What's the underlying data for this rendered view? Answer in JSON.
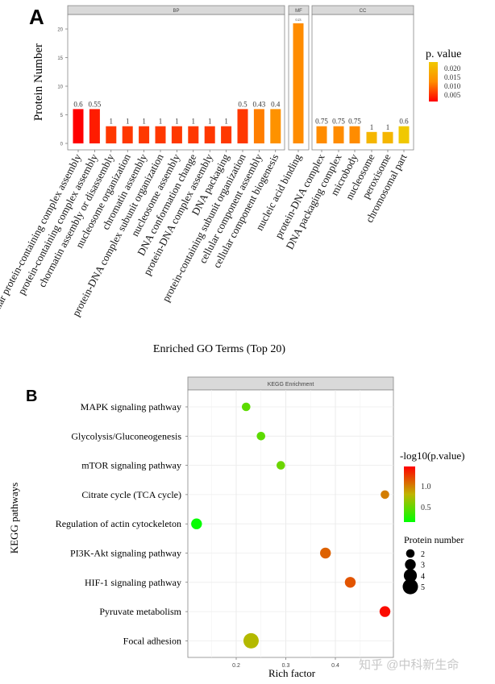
{
  "chart_data": [
    {
      "type": "bar",
      "panel_label": "A",
      "ylabel": "Protein Number",
      "xlabel": "Enriched GO Terms (Top 20)",
      "ylim": [
        0,
        23
      ],
      "yticks": [
        0,
        5,
        10,
        15,
        20
      ],
      "grid": false,
      "legend": {
        "title": "p. value",
        "ticks": [
          "0.020",
          "0.015",
          "0.010",
          "0.005"
        ],
        "placement": "right",
        "colors": [
          "#ff0000",
          "#ff8c00",
          "#f0c800"
        ]
      },
      "facets": [
        {
          "name": "BP",
          "categories": [
            "cellular protein-containing complex assembly",
            "protein-containing complex assembly",
            "chormatin assembly or disassembly",
            "nucleosome organization",
            "chromatin assembly",
            "protein-DNA complex subunit organization",
            "nucleosome assembly",
            "DNA conformation change",
            "protein-DNA complex assembly",
            "DNA packaging",
            "protein-containing subunit organization",
            "cellular component assembly",
            "cellular component biogenesis"
          ],
          "values": [
            6,
            6,
            3,
            3,
            3,
            3,
            3,
            3,
            3,
            3,
            6,
            6,
            6
          ],
          "labels": [
            "0.6",
            "0.55",
            "1",
            "1",
            "1",
            "1",
            "1",
            "1",
            "1",
            "1",
            "0.5",
            "0.43",
            "0.4"
          ],
          "pvalues": [
            0.002,
            0.004,
            0.006,
            0.006,
            0.006,
            0.006,
            0.006,
            0.006,
            0.006,
            0.006,
            0.006,
            0.011,
            0.013
          ]
        },
        {
          "name": "MF",
          "categories": [
            "nucleic acid binding"
          ],
          "values": [
            21
          ],
          "labels": [
            "0.23"
          ],
          "pvalues": [
            0.012
          ]
        },
        {
          "name": "CC",
          "categories": [
            "protein-DNA complex",
            "DNA packaging complex",
            "microbody",
            "nucleosome",
            "peroxisome",
            "chromosomal part"
          ],
          "values": [
            3,
            3,
            3,
            2,
            2,
            3
          ],
          "labels": [
            "0.75",
            "0.75",
            "0.75",
            "1",
            "1",
            "0.6"
          ],
          "pvalues": [
            0.012,
            0.012,
            0.012,
            0.019,
            0.019,
            0.022
          ]
        }
      ]
    },
    {
      "type": "scatter",
      "panel_label": "B",
      "title": "KEGG Enrichment",
      "xlabel": "Rich factor",
      "ylabel": "KEGG pathways",
      "xlim": [
        0.102,
        0.517
      ],
      "xticks": [
        "0.2",
        "0.3",
        "0.4"
      ],
      "grid": true,
      "categories": [
        "MAPK signaling pathway",
        "Glycolysis/Gluconeogenesis",
        "mTOR signaling pathway",
        "Citrate cycle (TCA cycle)",
        "Regulation of actin cytockeleton",
        "PI3K-Akt signaling pathway",
        "HIF-1 signaling pathway",
        "Pyruvate metabolism",
        "Focal adhesion"
      ],
      "rich_factor": [
        0.22,
        0.25,
        0.29,
        0.5,
        0.12,
        0.38,
        0.43,
        0.5,
        0.23
      ],
      "neg_log10_p": [
        0.45,
        0.45,
        0.5,
        1.0,
        0.15,
        1.1,
        1.15,
        1.42,
        0.75
      ],
      "protein_number": [
        2,
        2,
        2,
        2,
        3,
        3,
        3,
        3,
        5
      ],
      "color_legend": {
        "title": "-log10(p.value)",
        "ticks": [
          "1.0",
          "0.5"
        ],
        "colors": [
          "#00ff00",
          "#c0b400",
          "#ff0000"
        ],
        "placement": "right"
      },
      "size_legend": {
        "title": "Protein number",
        "ticks": [
          "2",
          "3",
          "4",
          "5"
        ]
      }
    }
  ],
  "watermark": "知乎 @中科新生命"
}
